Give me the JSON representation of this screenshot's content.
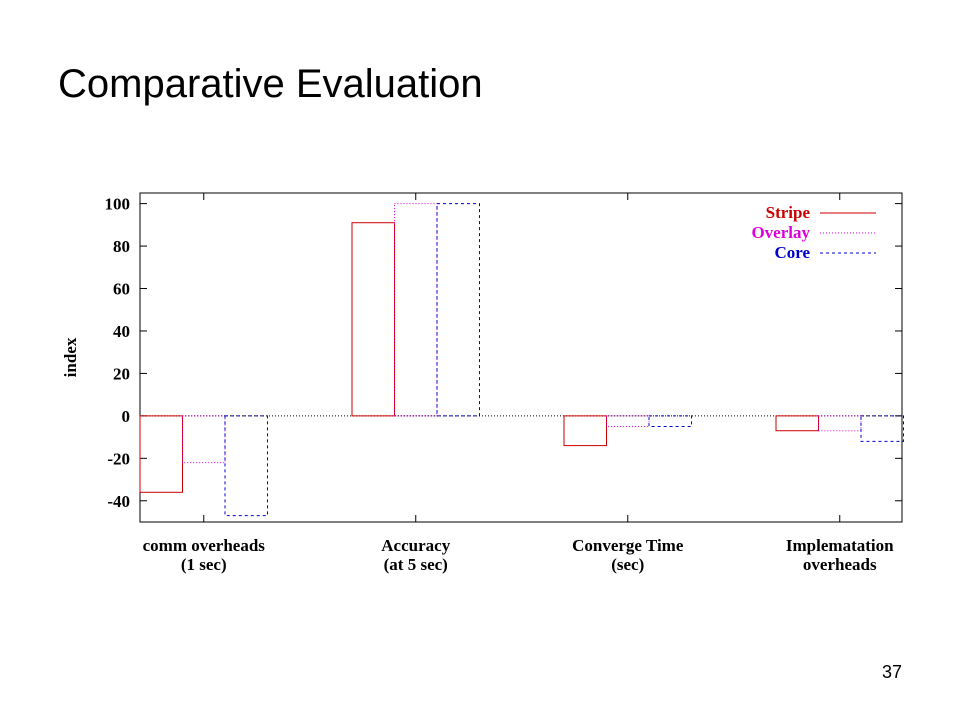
{
  "slide": {
    "title": "Comparative Evaluation",
    "page_number": "37"
  },
  "chart_data": {
    "type": "bar",
    "title": "",
    "xlabel": "",
    "ylabel": "index",
    "ylim": [
      -50,
      105
    ],
    "yticks": [
      -40,
      -20,
      0,
      20,
      40,
      60,
      80,
      100
    ],
    "grid": false,
    "legend_position": "top-right",
    "categories": [
      [
        "comm overheads",
        "(1 sec)"
      ],
      [
        "Accuracy",
        "(at 5 sec)"
      ],
      [
        "Converge Time",
        "(sec)"
      ],
      [
        "Implematation",
        "overheads"
      ]
    ],
    "series": [
      {
        "name": "Stripe",
        "color": "#cc0000",
        "line_style": "solid",
        "values": [
          -36,
          91,
          -14,
          -7
        ]
      },
      {
        "name": "Overlay",
        "color": "#dd00dd",
        "line_style": "dotted",
        "values": [
          -22,
          100,
          -5,
          -7
        ]
      },
      {
        "name": "Core",
        "color": "#0000cc",
        "line_style": "dashed",
        "values": [
          -47,
          100,
          -5,
          -12
        ]
      }
    ]
  }
}
